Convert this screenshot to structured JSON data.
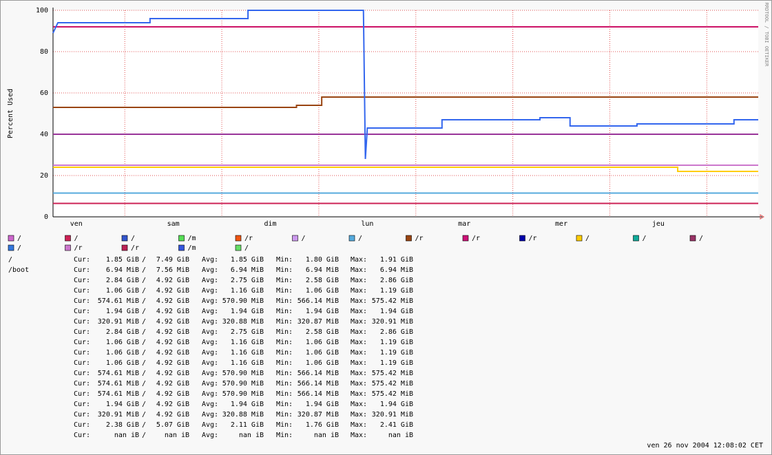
{
  "chart_data": {
    "type": "line",
    "y_label": "Percent Used",
    "side_label": "RRDTOOL / TOBI OETIKER",
    "xlim": [
      0.26,
      7.53
    ],
    "xticks": [
      {
        "value": 0.5,
        "label": "ven"
      },
      {
        "value": 1.5,
        "label": "sam"
      },
      {
        "value": 2.5,
        "label": "dim"
      },
      {
        "value": 3.5,
        "label": "lun"
      },
      {
        "value": 4.5,
        "label": "mar"
      },
      {
        "value": 5.5,
        "label": "mer"
      },
      {
        "value": 6.5,
        "label": "jeu"
      }
    ],
    "xgrid": [
      1,
      2,
      3,
      4,
      5,
      6,
      7
    ],
    "ylim": [
      0,
      100
    ],
    "yticks": [
      0,
      20,
      40,
      60,
      80,
      100
    ],
    "grid": true,
    "series": [
      {
        "color": "#cc2255",
        "x": [
          0.26,
          7.53
        ],
        "values": [
          6.5,
          6.5
        ]
      },
      {
        "color": "#55aadd",
        "x": [
          0.26,
          7.53
        ],
        "values": [
          11.5,
          11.5
        ]
      },
      {
        "color": "#ffcc00",
        "x": [
          0.26,
          6.7,
          6.7,
          7.53
        ],
        "values": [
          24,
          24,
          22,
          22
        ]
      },
      {
        "color": "#cc77cc",
        "x": [
          0.26,
          7.53
        ],
        "values": [
          25,
          25
        ]
      },
      {
        "color": "#993399",
        "x": [
          0.26,
          7.53
        ],
        "values": [
          40,
          40
        ]
      },
      {
        "color": "#994411",
        "x": [
          0.26,
          2.77,
          2.77,
          3.03,
          3.03,
          7.53
        ],
        "values": [
          53,
          53,
          54,
          54,
          58,
          58
        ]
      },
      {
        "color": "#cc1166",
        "x": [
          0.26,
          7.53
        ],
        "values": [
          92,
          92
        ]
      },
      {
        "color": "#3366ee",
        "x": [
          0.26,
          0.31,
          1.26,
          1.26,
          2.27,
          2.27,
          3.46,
          3.48,
          3.5,
          4.27,
          4.27,
          5.28,
          5.28,
          5.59,
          5.59,
          6.28,
          6.28,
          7.28,
          7.28,
          7.53
        ],
        "values": [
          89,
          94,
          94,
          96,
          96,
          100,
          100,
          28,
          43,
          43,
          47,
          47,
          48,
          48,
          44,
          44,
          45,
          45,
          47,
          47
        ]
      }
    ]
  },
  "legend": [
    {
      "name": "/",
      "color": "#cc66cc"
    },
    {
      "name": "/",
      "color": "#cc2255"
    },
    {
      "name": "/",
      "color": "#3355cc"
    },
    {
      "name": "/m",
      "color": "#55dd55"
    },
    {
      "name": "/r",
      "color": "#ee5511"
    },
    {
      "name": "/",
      "color": "#cc99ee"
    },
    {
      "name": "/",
      "color": "#55aadd"
    },
    {
      "name": "/r",
      "color": "#994411"
    },
    {
      "name": "/r",
      "color": "#cc1177"
    },
    {
      "name": "/r",
      "color": "#0000aa"
    },
    {
      "name": "/",
      "color": "#ffcc00"
    },
    {
      "name": "/",
      "color": "#11aa99"
    },
    {
      "name": "/",
      "color": "#993366"
    },
    {
      "name": "/",
      "color": "#3377dd"
    },
    {
      "name": "/r",
      "color": "#cc77cc"
    },
    {
      "name": "/r",
      "color": "#bb2255"
    },
    {
      "name": "/m",
      "color": "#3355dd"
    },
    {
      "name": "/",
      "color": "#66dd66"
    }
  ],
  "stats": {
    "labels": [
      "Cur:",
      "Avg:",
      "Min:",
      "Max:"
    ],
    "separator": "/",
    "rows": [
      {
        "name": "/",
        "cur": "1.85 GiB",
        "total": "7.49 GiB",
        "avg": "1.85 GiB",
        "min": "1.80 GiB",
        "max": "1.91 GiB"
      },
      {
        "name": "/boot",
        "cur": "6.94 MiB",
        "total": "7.56 MiB",
        "avg": "6.94 MiB",
        "min": "6.94 MiB",
        "max": "6.94 MiB"
      },
      {
        "cur": "2.84 GiB",
        "total": "4.92 GiB",
        "avg": "2.75 GiB",
        "min": "2.58 GiB",
        "max": "2.86 GiB"
      },
      {
        "cur": "1.06 GiB",
        "total": "4.92 GiB",
        "avg": "1.16 GiB",
        "min": "1.06 GiB",
        "max": "1.19 GiB"
      },
      {
        "cur": "574.61 MiB",
        "total": "4.92 GiB",
        "avg": "570.90 MiB",
        "min": "566.14 MiB",
        "max": "575.42 MiB"
      },
      {
        "cur": "1.94 GiB",
        "total": "4.92 GiB",
        "avg": "1.94 GiB",
        "min": "1.94 GiB",
        "max": "1.94 GiB"
      },
      {
        "cur": "320.91 MiB",
        "total": "4.92 GiB",
        "avg": "320.88 MiB",
        "min": "320.87 MiB",
        "max": "320.91 MiB"
      },
      {
        "cur": "2.84 GiB",
        "total": "4.92 GiB",
        "avg": "2.75 GiB",
        "min": "2.58 GiB",
        "max": "2.86 GiB"
      },
      {
        "cur": "1.06 GiB",
        "total": "4.92 GiB",
        "avg": "1.16 GiB",
        "min": "1.06 GiB",
        "max": "1.19 GiB"
      },
      {
        "cur": "1.06 GiB",
        "total": "4.92 GiB",
        "avg": "1.16 GiB",
        "min": "1.06 GiB",
        "max": "1.19 GiB"
      },
      {
        "cur": "1.06 GiB",
        "total": "4.92 GiB",
        "avg": "1.16 GiB",
        "min": "1.06 GiB",
        "max": "1.19 GiB"
      },
      {
        "cur": "574.61 MiB",
        "total": "4.92 GiB",
        "avg": "570.90 MiB",
        "min": "566.14 MiB",
        "max": "575.42 MiB"
      },
      {
        "cur": "574.61 MiB",
        "total": "4.92 GiB",
        "avg": "570.90 MiB",
        "min": "566.14 MiB",
        "max": "575.42 MiB"
      },
      {
        "cur": "574.61 MiB",
        "total": "4.92 GiB",
        "avg": "570.90 MiB",
        "min": "566.14 MiB",
        "max": "575.42 MiB"
      },
      {
        "cur": "1.94 GiB",
        "total": "4.92 GiB",
        "avg": "1.94 GiB",
        "min": "1.94 GiB",
        "max": "1.94 GiB"
      },
      {
        "cur": "320.91 MiB",
        "total": "4.92 GiB",
        "avg": "320.88 MiB",
        "min": "320.87 MiB",
        "max": "320.91 MiB"
      },
      {
        "cur": "2.38 GiB",
        "total": "5.07 GiB",
        "avg": "2.11 GiB",
        "min": "1.76 GiB",
        "max": "2.41 GiB"
      },
      {
        "cur": "nan iB",
        "total": "nan iB",
        "avg": "nan iB",
        "min": "nan iB",
        "max": "nan iB"
      }
    ]
  },
  "timestamp": "ven 26 nov 2004 12:08:02 CET"
}
